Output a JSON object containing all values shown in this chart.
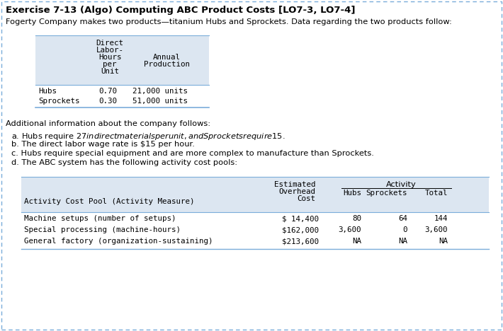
{
  "title": "Exercise 7-13 (Algo) Computing ABC Product Costs [LO7-3, LO7-4]",
  "intro": "Fogerty Company makes two products—titanium Hubs and Sprockets. Data regarding the two products follow:",
  "top_table_header": [
    "Direct",
    "Labor-",
    "Hours",
    "per",
    "Unit"
  ],
  "top_table_header2": [
    "Annual",
    "Production"
  ],
  "top_table_rows": [
    [
      "Hubs",
      "0.70",
      "21,000 units"
    ],
    [
      "Sprockets",
      "0.30",
      "51,000 units"
    ]
  ],
  "additional_info_label": "Additional information about the company follows:",
  "bullets": [
    "a. Hubs require $27 in direct materials per unit, and Sprockets require $15.",
    "b. The direct labor wage rate is $15 per hour.",
    "c. Hubs require special equipment and are more complex to manufacture than Sprockets.",
    "d. The ABC system has the following activity cost pools:"
  ],
  "bt_col_header_cost": "Estimated\nOverhead\nCost",
  "bt_activity_header": "Activity",
  "bt_col_hubs": "Hubs",
  "bt_col_sprockets": "Sprockets",
  "bt_col_total": "Total",
  "bt_label_row": "Activity Cost Pool (Activity Measure)",
  "bt_data_rows": [
    [
      "Machine setups (number of setups)",
      "$ 14,400",
      "80",
      "64",
      "144"
    ],
    [
      "Special processing (machine-hours)",
      "$162,000",
      "3,600",
      "0",
      "3,600"
    ],
    [
      "General factory (organization-sustaining)",
      "$213,600",
      "NA",
      "NA",
      "NA"
    ]
  ],
  "table_header_bg": "#dce6f1",
  "border_color_dash": "#7aadda",
  "line_color": "#7aadda"
}
